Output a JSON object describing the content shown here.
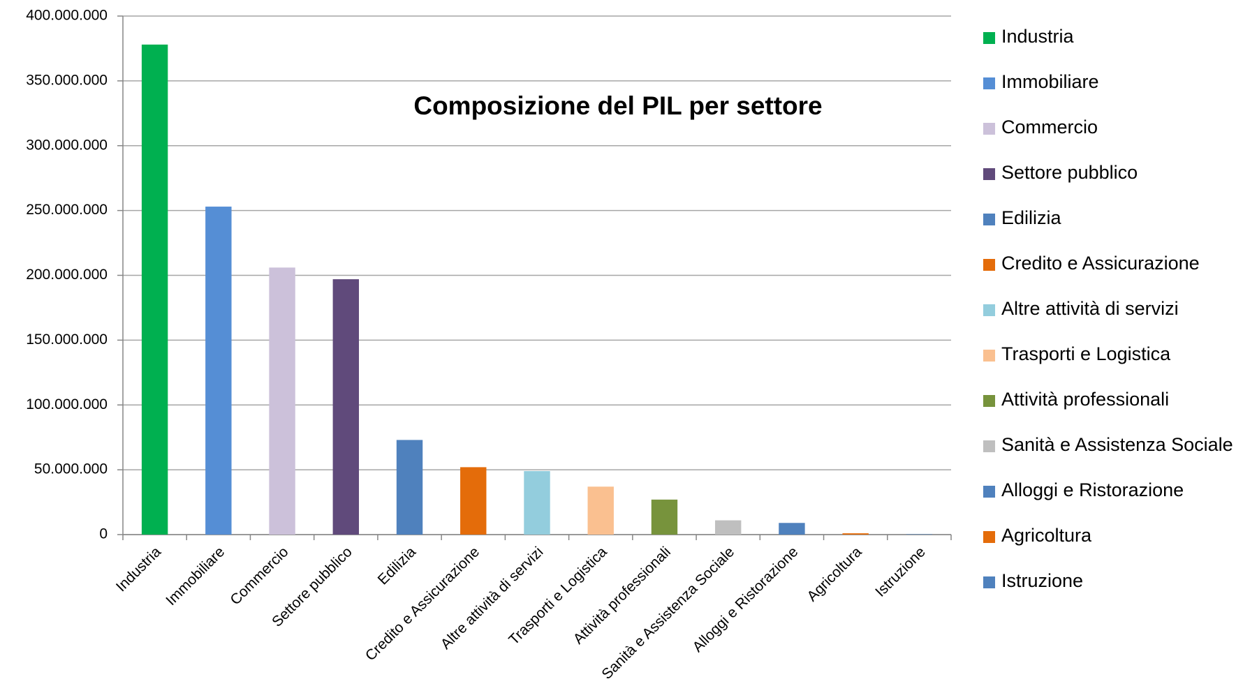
{
  "chart_data": {
    "type": "bar",
    "title": "Composizione del PIL per settore",
    "categories": [
      "Industria",
      "Immobiliare",
      "Commercio",
      "Settore pubblico",
      "Edilizia",
      "Credito e Assicurazione",
      "Altre attività di servizi",
      "Trasporti e Logistica",
      "Attività professionali",
      "Sanità e Assistenza Sociale",
      "Alloggi e Ristorazione",
      "Agricoltura",
      "Istruzione"
    ],
    "values": [
      378000000,
      253000000,
      206000000,
      197000000,
      73000000,
      52000000,
      49000000,
      37000000,
      27000000,
      11000000,
      9000000,
      1000000,
      300000
    ],
    "colors": [
      "#00b050",
      "#558ed5",
      "#ccc1da",
      "#604a7b",
      "#4f81bd",
      "#e46c0a",
      "#93cddd",
      "#fac090",
      "#77933c",
      "#bfbfbf",
      "#4f81bd",
      "#e46c0a",
      "#4f81bd"
    ],
    "ylim": [
      0,
      400000000
    ],
    "yticks": [
      0,
      {
        "value": 50000000,
        "label": "50.000.000"
      },
      {
        "value": 100000000,
        "label": "100.000.000"
      },
      {
        "value": 150000000,
        "label": "150.000.000"
      },
      {
        "value": 200000000,
        "label": "200.000.000"
      },
      {
        "value": 250000000,
        "label": "250.000.000"
      },
      {
        "value": 300000000,
        "label": "300.000.000"
      },
      {
        "value": 350000000,
        "label": "350.000.000"
      },
      {
        "value": 400000000,
        "label": "400.000.000"
      }
    ],
    "grid": true,
    "legend": "right"
  }
}
